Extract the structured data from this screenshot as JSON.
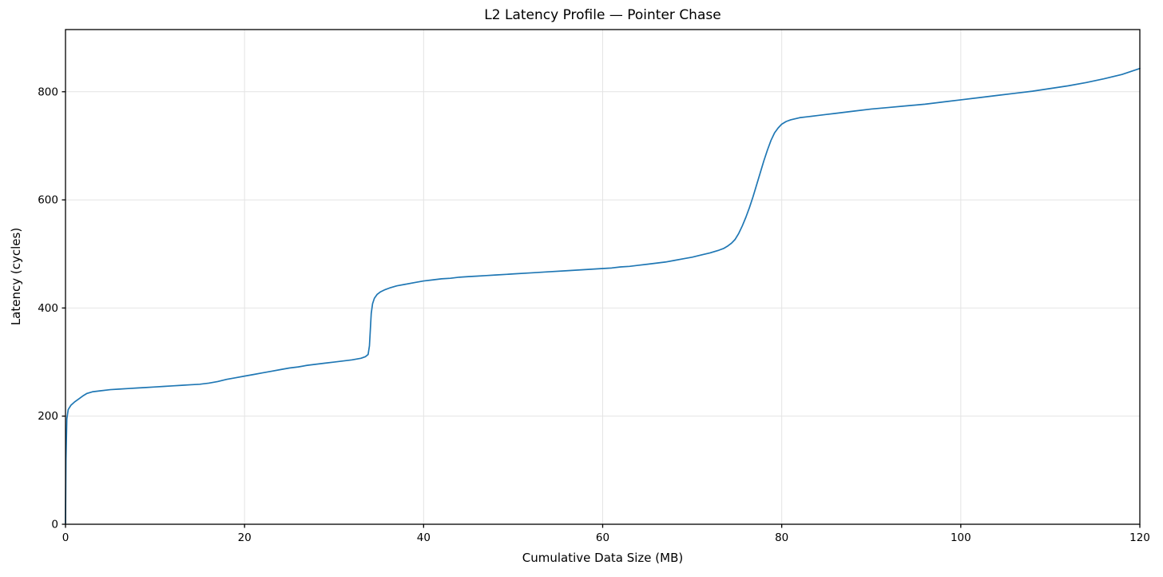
{
  "figure": {
    "background": "#ffffff"
  },
  "chart_data": {
    "type": "line",
    "title": "L2 Latency Profile — Pointer Chase",
    "xlabel": "Cumulative Data Size (MB)",
    "ylabel": "Latency (cycles)",
    "xlim": [
      0,
      120
    ],
    "ylim": [
      0,
      915
    ],
    "x_ticks": [
      0,
      20,
      40,
      60,
      80,
      100,
      120
    ],
    "y_ticks": [
      0,
      200,
      400,
      600,
      800
    ],
    "grid": true,
    "legend_position": "none",
    "colors": {
      "line": "#1f77b4",
      "grid": "#e4e4e4",
      "spine": "#000000",
      "tick": "#000000",
      "text": "#000000"
    },
    "series": [
      {
        "name": "latency",
        "points": [
          [
            0,
            2
          ],
          [
            0.05,
            120
          ],
          [
            0.15,
            195
          ],
          [
            0.3,
            212
          ],
          [
            0.6,
            220
          ],
          [
            1,
            226
          ],
          [
            1.5,
            232
          ],
          [
            2,
            238
          ],
          [
            2.4,
            242
          ],
          [
            3,
            245
          ],
          [
            4,
            247
          ],
          [
            5,
            249
          ],
          [
            6,
            250
          ],
          [
            7,
            251
          ],
          [
            8,
            252
          ],
          [
            9,
            253
          ],
          [
            10,
            254
          ],
          [
            11,
            255
          ],
          [
            12,
            256
          ],
          [
            13,
            257
          ],
          [
            14,
            258
          ],
          [
            15,
            259
          ],
          [
            16,
            261
          ],
          [
            17,
            264
          ],
          [
            18,
            268
          ],
          [
            19,
            271
          ],
          [
            20,
            274
          ],
          [
            21,
            277
          ],
          [
            22,
            280
          ],
          [
            23,
            283
          ],
          [
            24,
            286
          ],
          [
            25,
            289
          ],
          [
            26,
            291
          ],
          [
            27,
            294
          ],
          [
            28,
            296
          ],
          [
            29,
            298
          ],
          [
            30,
            300
          ],
          [
            31,
            302
          ],
          [
            32,
            304
          ],
          [
            33,
            307
          ],
          [
            33.5,
            310
          ],
          [
            33.8,
            314
          ],
          [
            33.95,
            330
          ],
          [
            34.05,
            360
          ],
          [
            34.15,
            390
          ],
          [
            34.3,
            408
          ],
          [
            34.5,
            418
          ],
          [
            34.8,
            425
          ],
          [
            35.2,
            430
          ],
          [
            35.7,
            434
          ],
          [
            36.2,
            437
          ],
          [
            37,
            441
          ],
          [
            38,
            444
          ],
          [
            39,
            447
          ],
          [
            40,
            450
          ],
          [
            41,
            452
          ],
          [
            42,
            454
          ],
          [
            43,
            455
          ],
          [
            44,
            457
          ],
          [
            45,
            458
          ],
          [
            46,
            459
          ],
          [
            47,
            460
          ],
          [
            48,
            461
          ],
          [
            50,
            463
          ],
          [
            52,
            465
          ],
          [
            54,
            467
          ],
          [
            56,
            469
          ],
          [
            58,
            471
          ],
          [
            60,
            473
          ],
          [
            61,
            474
          ],
          [
            62,
            476
          ],
          [
            63,
            477
          ],
          [
            64,
            479
          ],
          [
            65,
            481
          ],
          [
            66,
            483
          ],
          [
            67,
            485
          ],
          [
            68,
            488
          ],
          [
            69,
            491
          ],
          [
            70,
            494
          ],
          [
            71,
            498
          ],
          [
            72,
            502
          ],
          [
            73,
            507
          ],
          [
            73.5,
            510
          ],
          [
            74,
            515
          ],
          [
            74.4,
            520
          ],
          [
            74.8,
            527
          ],
          [
            75.2,
            538
          ],
          [
            75.6,
            552
          ],
          [
            76,
            568
          ],
          [
            76.4,
            586
          ],
          [
            76.8,
            606
          ],
          [
            77.2,
            628
          ],
          [
            77.6,
            650
          ],
          [
            78,
            672
          ],
          [
            78.4,
            692
          ],
          [
            78.8,
            710
          ],
          [
            79.2,
            724
          ],
          [
            79.6,
            733
          ],
          [
            80,
            740
          ],
          [
            80.5,
            745
          ],
          [
            81,
            748
          ],
          [
            82,
            752
          ],
          [
            83,
            754
          ],
          [
            84,
            756
          ],
          [
            85,
            758
          ],
          [
            86,
            760
          ],
          [
            88,
            764
          ],
          [
            90,
            768
          ],
          [
            92,
            771
          ],
          [
            94,
            774
          ],
          [
            96,
            777
          ],
          [
            98,
            781
          ],
          [
            100,
            785
          ],
          [
            102,
            789
          ],
          [
            104,
            793
          ],
          [
            106,
            797
          ],
          [
            108,
            801
          ],
          [
            110,
            806
          ],
          [
            112,
            811
          ],
          [
            114,
            817
          ],
          [
            116,
            824
          ],
          [
            118,
            832
          ],
          [
            120,
            843
          ]
        ]
      }
    ]
  }
}
